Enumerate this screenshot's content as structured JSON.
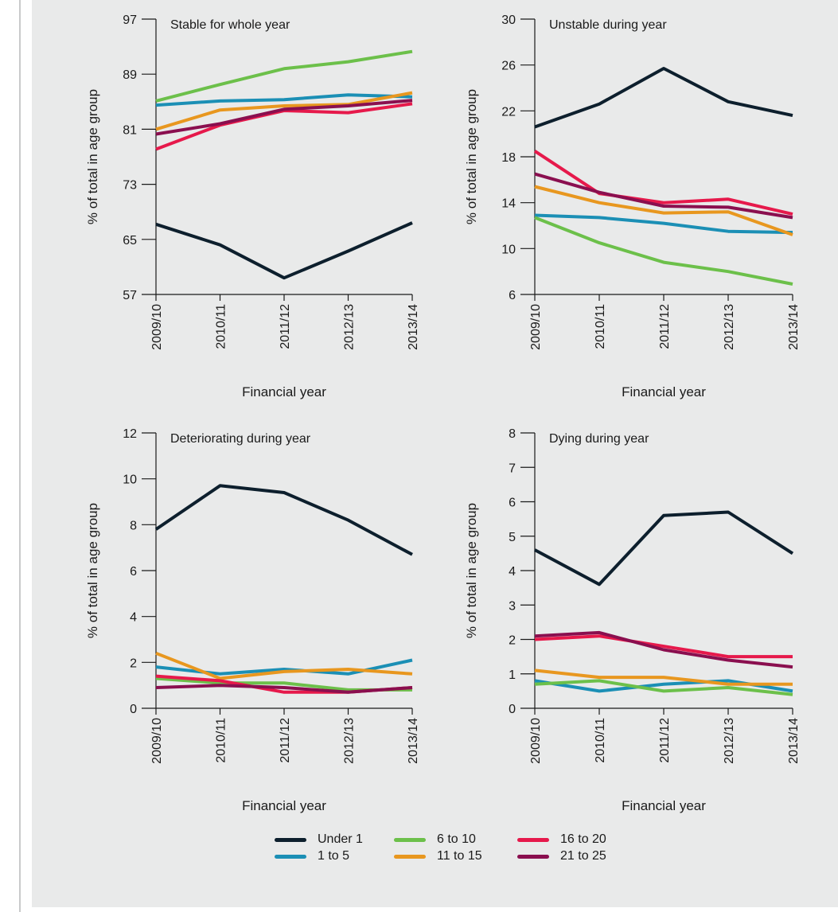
{
  "chart_data": [
    {
      "type": "line",
      "id": "stable",
      "title": "Stable for whole year",
      "xlabel": "Financial year",
      "ylabel": "% of total in age group",
      "categories": [
        "2009/10",
        "2010/11",
        "2011/12",
        "2012/13",
        "2013/14"
      ],
      "yticks": [
        57,
        65,
        73,
        81,
        89,
        97
      ],
      "ylim": [
        57,
        97
      ],
      "series": [
        {
          "name": "Under 1",
          "values": [
            67.2,
            64.2,
            59.4,
            63.3,
            67.4
          ]
        },
        {
          "name": "1 to 5",
          "values": [
            84.5,
            85.1,
            85.3,
            86.0,
            85.7
          ]
        },
        {
          "name": "6 to 10",
          "values": [
            85.1,
            87.5,
            89.8,
            90.8,
            92.3
          ]
        },
        {
          "name": "11 to 15",
          "values": [
            81.0,
            83.8,
            84.4,
            84.6,
            86.3
          ]
        },
        {
          "name": "16 to 20",
          "values": [
            78.1,
            81.6,
            83.7,
            83.4,
            84.7
          ]
        },
        {
          "name": "21 to 25",
          "values": [
            80.3,
            81.8,
            83.9,
            84.4,
            85.2
          ]
        }
      ]
    },
    {
      "type": "line",
      "id": "unstable",
      "title": "Unstable during year",
      "xlabel": "Financial year",
      "ylabel": "% of total in age group",
      "categories": [
        "2009/10",
        "2010/11",
        "2011/12",
        "2012/13",
        "2013/14"
      ],
      "yticks": [
        6,
        10,
        14,
        18,
        22,
        26,
        30
      ],
      "ylim": [
        6,
        30
      ],
      "series": [
        {
          "name": "Under 1",
          "values": [
            20.6,
            22.6,
            25.7,
            22.8,
            21.6
          ]
        },
        {
          "name": "1 to 5",
          "values": [
            12.9,
            12.7,
            12.2,
            11.5,
            11.4
          ]
        },
        {
          "name": "6 to 10",
          "values": [
            12.7,
            10.5,
            8.8,
            8.0,
            6.9
          ]
        },
        {
          "name": "11 to 15",
          "values": [
            15.4,
            14.0,
            13.1,
            13.2,
            11.2
          ]
        },
        {
          "name": "16 to 20",
          "values": [
            18.5,
            14.8,
            14.0,
            14.3,
            13.0
          ]
        },
        {
          "name": "21 to 25",
          "values": [
            16.5,
            14.9,
            13.7,
            13.6,
            12.7
          ]
        }
      ]
    },
    {
      "type": "line",
      "id": "deteriorating",
      "title": "Deteriorating during year",
      "xlabel": "Financial year",
      "ylabel": "% of total in age group",
      "categories": [
        "2009/10",
        "2010/11",
        "2011/12",
        "2012/13",
        "2013/14"
      ],
      "yticks": [
        0,
        2,
        4,
        6,
        8,
        10,
        12
      ],
      "ylim": [
        0,
        12
      ],
      "series": [
        {
          "name": "Under 1",
          "values": [
            7.8,
            9.7,
            9.4,
            8.2,
            6.7
          ]
        },
        {
          "name": "1 to 5",
          "values": [
            1.8,
            1.5,
            1.7,
            1.5,
            2.1
          ]
        },
        {
          "name": "6 to 10",
          "values": [
            1.3,
            1.1,
            1.1,
            0.8,
            0.8
          ]
        },
        {
          "name": "11 to 15",
          "values": [
            2.4,
            1.3,
            1.6,
            1.7,
            1.5
          ]
        },
        {
          "name": "16 to 20",
          "values": [
            1.4,
            1.2,
            0.7,
            0.7,
            0.9
          ]
        },
        {
          "name": "21 to 25",
          "values": [
            0.9,
            1.0,
            0.9,
            0.7,
            0.9
          ]
        }
      ]
    },
    {
      "type": "line",
      "id": "dying",
      "title": "Dying during year",
      "xlabel": "Financial year",
      "ylabel": "% of total in age group",
      "categories": [
        "2009/10",
        "2010/11",
        "2011/12",
        "2012/13",
        "2013/14"
      ],
      "yticks": [
        0,
        1,
        2,
        3,
        4,
        5,
        6,
        7,
        8
      ],
      "ylim": [
        0,
        8
      ],
      "series": [
        {
          "name": "Under 1",
          "values": [
            4.6,
            3.6,
            5.6,
            5.7,
            4.5
          ]
        },
        {
          "name": "1 to 5",
          "values": [
            0.8,
            0.5,
            0.7,
            0.8,
            0.5
          ]
        },
        {
          "name": "6 to 10",
          "values": [
            0.7,
            0.8,
            0.5,
            0.6,
            0.4
          ]
        },
        {
          "name": "11 to 15",
          "values": [
            1.1,
            0.9,
            0.9,
            0.7,
            0.7
          ]
        },
        {
          "name": "16 to 20",
          "values": [
            2.0,
            2.1,
            1.8,
            1.5,
            1.5
          ]
        },
        {
          "name": "21 to 25",
          "values": [
            2.1,
            2.2,
            1.7,
            1.4,
            1.2
          ]
        }
      ]
    }
  ],
  "legend": {
    "placement": "bottom",
    "items": [
      {
        "label": "Under 1",
        "color": "#0d1f2d"
      },
      {
        "label": "1 to 5",
        "color": "#1b8fb5"
      },
      {
        "label": "6 to 10",
        "color": "#6cc04a"
      },
      {
        "label": "11 to 15",
        "color": "#e8971f"
      },
      {
        "label": "16 to 20",
        "color": "#e6194b"
      },
      {
        "label": "21 to 25",
        "color": "#8a0f4f"
      }
    ]
  }
}
